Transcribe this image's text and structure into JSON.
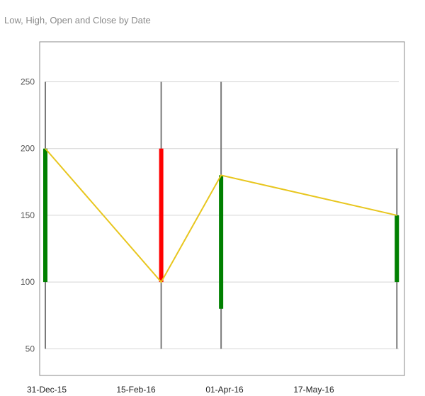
{
  "chart_data": {
    "type": "candlestick",
    "title": "Low, High, Open and Close by Date",
    "xlabel": "",
    "ylabel": "",
    "x_tick_labels": [
      "31-Dec-15",
      "15-Feb-16",
      "01-Apr-16",
      "17-May-16"
    ],
    "x_range": [
      "2015-12-31",
      "2016-07-01"
    ],
    "ylim": [
      30,
      280
    ],
    "y_ticks": [
      50,
      100,
      150,
      200,
      250
    ],
    "grid": true,
    "legend": "none",
    "points": [
      {
        "date": "2015-12-31",
        "low": 50,
        "high": 250,
        "open": 100,
        "close": 200
      },
      {
        "date": "2016-02-29",
        "low": 50,
        "high": 250,
        "open": 200,
        "close": 100
      },
      {
        "date": "2016-03-31",
        "low": 50,
        "high": 250,
        "open": 80,
        "close": 180
      },
      {
        "date": "2016-06-30",
        "low": 50,
        "high": 200,
        "open": 100,
        "close": 150
      }
    ],
    "colors": {
      "increasing": "#008000",
      "decreasing": "#ff0000",
      "wick": "#7a7a7a",
      "close_line": "#e8c61e",
      "grid": "#d4d4d4",
      "frame": "#888888"
    }
  }
}
